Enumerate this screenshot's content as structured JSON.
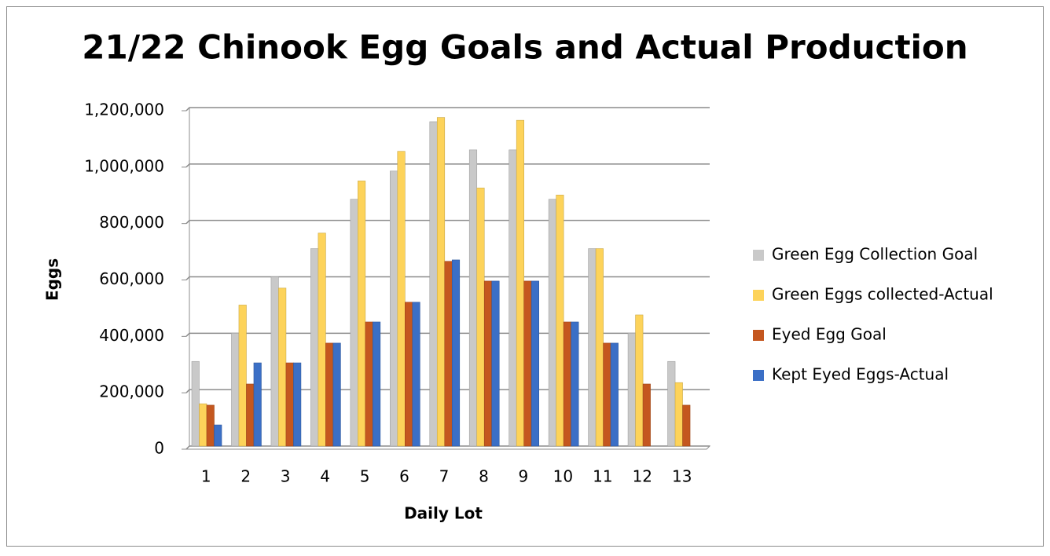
{
  "chart_data": {
    "type": "bar",
    "title": "21/22 Chinook Egg Goals and Actual Production",
    "x_label": "Daily Lot",
    "y_label": "Eggs",
    "categories": [
      "1",
      "2",
      "3",
      "4",
      "5",
      "6",
      "7",
      "8",
      "9",
      "10",
      "11",
      "12",
      "13"
    ],
    "series": [
      {
        "name": "Green Egg Collection Goal",
        "color": "#c9c9c9",
        "values": [
          300000,
          400000,
          600000,
          700000,
          875000,
          975000,
          1150000,
          1050000,
          1050000,
          875000,
          700000,
          400000,
          300000
        ]
      },
      {
        "name": "Green Eggs collected-Actual",
        "color": "#fdd35a",
        "values": [
          150000,
          500000,
          560000,
          755000,
          940000,
          1045000,
          1165000,
          915000,
          1155000,
          890000,
          700000,
          465000,
          225000
        ]
      },
      {
        "name": "Eyed Egg Goal",
        "color": "#c4571f",
        "values": [
          145000,
          220000,
          295000,
          365000,
          440000,
          510000,
          655000,
          585000,
          585000,
          440000,
          365000,
          220000,
          145000
        ]
      },
      {
        "name": "Kept Eyed Eggs-Actual",
        "color": "#3b6fc6",
        "values": [
          75000,
          295000,
          295000,
          365000,
          440000,
          510000,
          660000,
          585000,
          585000,
          440000,
          365000,
          null,
          null
        ]
      }
    ],
    "ylim": [
      0,
      1200000
    ],
    "yticks": [
      0,
      {
        "value": 200000,
        "label": "200,000"
      },
      {
        "value": 400000,
        "label": "400,000"
      },
      {
        "value": 600000,
        "label": "600,000"
      },
      {
        "value": 800000,
        "label": "800,000"
      },
      {
        "value": 1000000,
        "label": "1,000,000"
      },
      {
        "value": 1200000,
        "label": "1,200,000"
      }
    ],
    "grid": true,
    "legend": "right"
  }
}
